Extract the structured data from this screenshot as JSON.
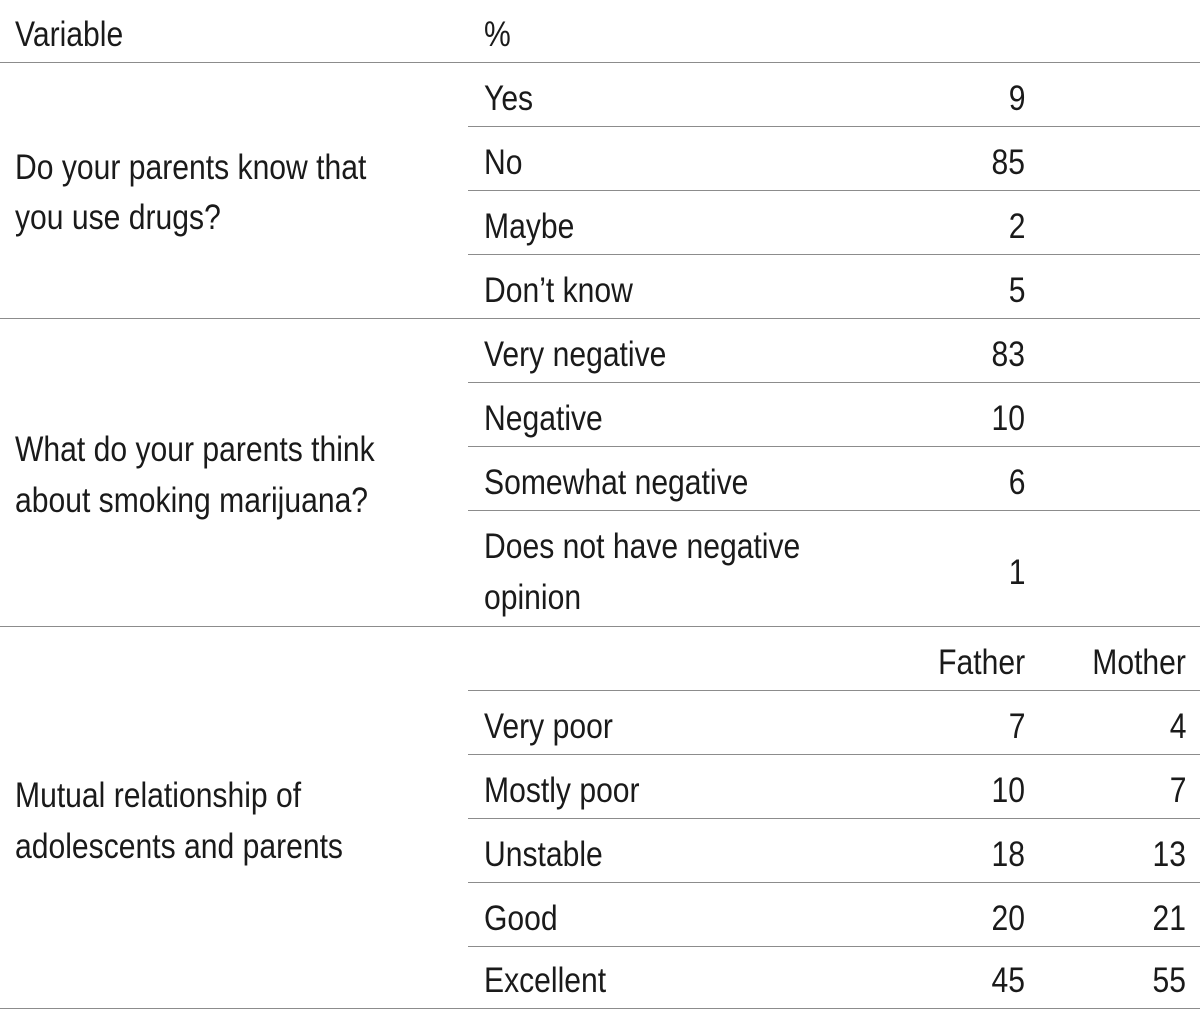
{
  "header": {
    "variable": "Variable",
    "percent": "%"
  },
  "sections": [
    {
      "variable_lines": [
        "Do your parents know that",
        "you use drugs?"
      ],
      "rows": [
        {
          "label": "Yes",
          "value": "9"
        },
        {
          "label": "No",
          "value": "85"
        },
        {
          "label": "Maybe",
          "value": "2"
        },
        {
          "label": "Don’t know",
          "value": "5"
        }
      ]
    },
    {
      "variable_lines": [
        "What do your parents think",
        "about smoking marijuana?"
      ],
      "rows": [
        {
          "label": "Very negative",
          "value": "83"
        },
        {
          "label": "Negative",
          "value": "10"
        },
        {
          "label": "Somewhat negative",
          "value": "6"
        },
        {
          "label_lines": [
            "Does not have negative",
            "opinion"
          ],
          "value": "1"
        }
      ]
    },
    {
      "variable_lines": [
        "Mutual relationship of",
        "adolescents and parents"
      ],
      "subheader": {
        "father": "Father",
        "mother": "Mother"
      },
      "rows": [
        {
          "label": "Very poor",
          "father": "7",
          "mother": "4"
        },
        {
          "label": "Mostly poor",
          "father": "10",
          "mother": "7"
        },
        {
          "label": "Unstable",
          "father": "18",
          "mother": "13"
        },
        {
          "label": "Good",
          "father": "20",
          "mother": "21"
        },
        {
          "label": "Excellent",
          "father": "45",
          "mother": "55"
        }
      ]
    }
  ]
}
